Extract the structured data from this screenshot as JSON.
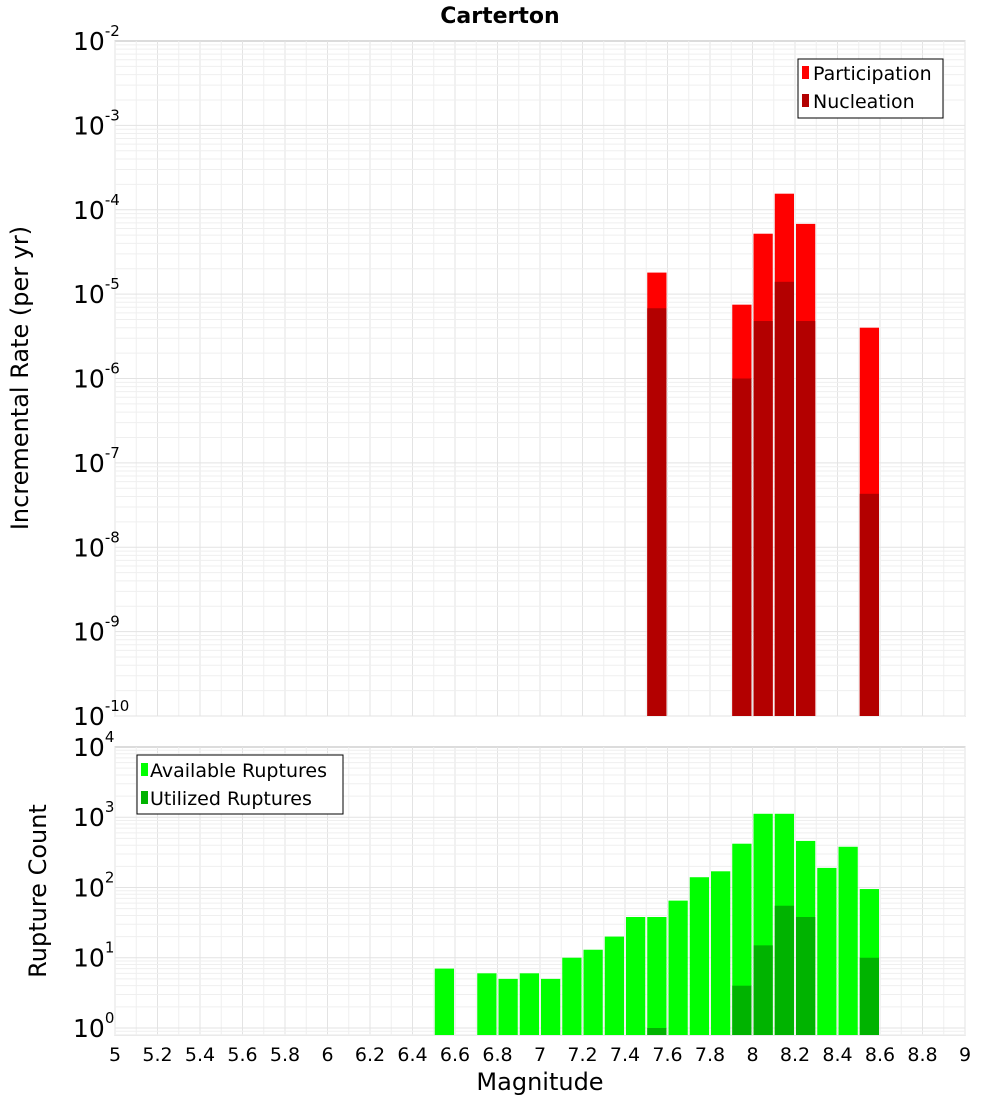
{
  "chart_data": [
    {
      "type": "bar",
      "title": "Carterton",
      "xlabel": "",
      "ylabel": "Incremental Rate (per yr)",
      "y_scale": "log",
      "ylim_exponents": [
        -10,
        -2
      ],
      "xlim": [
        5,
        9
      ],
      "bar_width": 0.1,
      "grid": true,
      "legend_position": "top-right",
      "y_tick_exponents": [
        "-10",
        "-9",
        "-8",
        "-7",
        "-6",
        "-5",
        "-4",
        "-3",
        "-2"
      ],
      "series": [
        {
          "name": "Participation",
          "color": "#ff0000",
          "points": [
            {
              "x": 7.55,
              "y": 1.8e-05
            },
            {
              "x": 7.95,
              "y": 7.5e-06
            },
            {
              "x": 8.05,
              "y": 5.2e-05
            },
            {
              "x": 8.15,
              "y": 0.000155
            },
            {
              "x": 8.25,
              "y": 6.8e-05
            },
            {
              "x": 8.55,
              "y": 4e-06
            }
          ]
        },
        {
          "name": "Nucleation",
          "color": "#b30000",
          "points": [
            {
              "x": 7.55,
              "y": 6.8e-06
            },
            {
              "x": 7.95,
              "y": 1e-06
            },
            {
              "x": 8.05,
              "y": 4.8e-06
            },
            {
              "x": 8.15,
              "y": 1.4e-05
            },
            {
              "x": 8.25,
              "y": 4.8e-06
            },
            {
              "x": 8.55,
              "y": 4.3e-08
            }
          ]
        }
      ]
    },
    {
      "type": "bar",
      "title": "",
      "xlabel": "Magnitude",
      "ylabel": "Rupture Count",
      "y_scale": "log",
      "ylim_exponents": [
        -0.1,
        4
      ],
      "xlim": [
        5,
        9
      ],
      "bar_width": 0.1,
      "grid": true,
      "legend_position": "top-left",
      "y_tick_exponents": [
        "0",
        "1",
        "2",
        "3",
        "4"
      ],
      "x_ticks": [
        "5",
        "5.2",
        "5.4",
        "5.6",
        "5.8",
        "6",
        "6.2",
        "6.4",
        "6.6",
        "6.8",
        "7",
        "7.2",
        "7.4",
        "7.6",
        "7.8",
        "8",
        "8.2",
        "8.4",
        "8.6",
        "8.8",
        "9"
      ],
      "series": [
        {
          "name": "Available Ruptures",
          "color": "#00ff00",
          "points": [
            {
              "x": 6.55,
              "y": 7
            },
            {
              "x": 6.75,
              "y": 6
            },
            {
              "x": 6.85,
              "y": 5
            },
            {
              "x": 6.95,
              "y": 6
            },
            {
              "x": 7.05,
              "y": 5
            },
            {
              "x": 7.15,
              "y": 10
            },
            {
              "x": 7.25,
              "y": 13
            },
            {
              "x": 7.35,
              "y": 20
            },
            {
              "x": 7.45,
              "y": 38
            },
            {
              "x": 7.55,
              "y": 38
            },
            {
              "x": 7.65,
              "y": 65
            },
            {
              "x": 7.75,
              "y": 140
            },
            {
              "x": 7.85,
              "y": 170
            },
            {
              "x": 7.95,
              "y": 420
            },
            {
              "x": 8.05,
              "y": 1120
            },
            {
              "x": 8.15,
              "y": 1120
            },
            {
              "x": 8.25,
              "y": 460
            },
            {
              "x": 8.35,
              "y": 190
            },
            {
              "x": 8.45,
              "y": 380
            },
            {
              "x": 8.55,
              "y": 95
            }
          ]
        },
        {
          "name": "Utilized Ruptures",
          "color": "#00b300",
          "points": [
            {
              "x": 7.55,
              "y": 1
            },
            {
              "x": 7.95,
              "y": 4
            },
            {
              "x": 8.05,
              "y": 15
            },
            {
              "x": 8.15,
              "y": 55
            },
            {
              "x": 8.25,
              "y": 38
            },
            {
              "x": 8.55,
              "y": 10
            }
          ]
        }
      ]
    }
  ]
}
